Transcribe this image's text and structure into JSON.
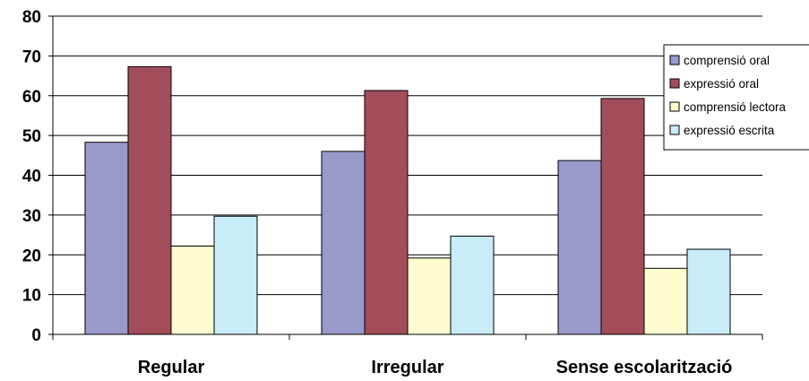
{
  "chart_data": {
    "type": "bar",
    "categories": [
      "Regular",
      "Irregular",
      "Sense escolarització"
    ],
    "series": [
      {
        "name": "comprensió oral",
        "values": [
          48.3,
          46.0,
          43.7
        ],
        "color": "#9999cc"
      },
      {
        "name": "expressió oral",
        "values": [
          67.3,
          61.3,
          59.3
        ],
        "color": "#a34d5b"
      },
      {
        "name": "comprensió lectora",
        "values": [
          22.2,
          19.2,
          16.6
        ],
        "color": "#fdfdd0"
      },
      {
        "name": "expressió escrita",
        "values": [
          29.7,
          24.7,
          21.4
        ],
        "color": "#c8ecf8"
      }
    ],
    "ylim": [
      0,
      80
    ],
    "yticks": [
      "0",
      "10",
      "20",
      "30",
      "40",
      "50",
      "60",
      "70",
      "80"
    ],
    "grid": true,
    "legend_position": "right"
  }
}
